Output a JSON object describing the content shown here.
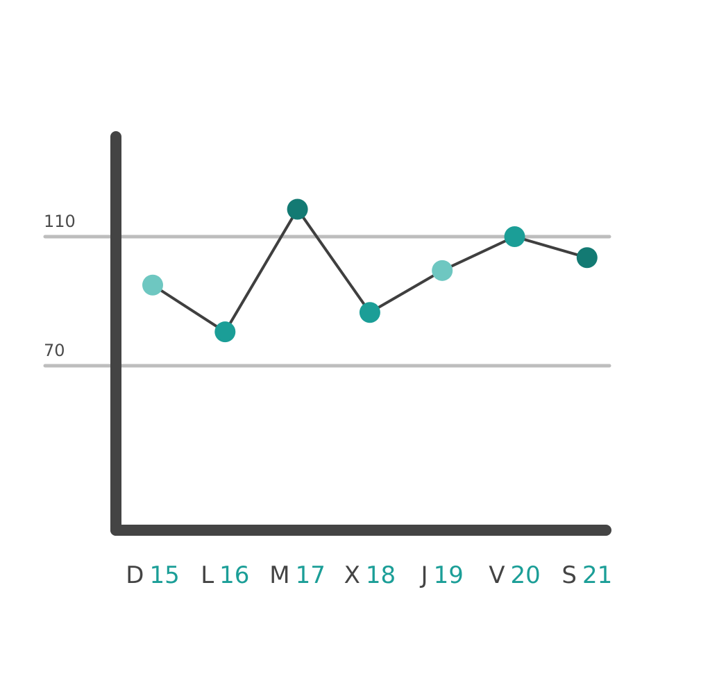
{
  "colors": {
    "axis": "#444444",
    "grid": "#bdbdbd",
    "line": "#3f3f3f",
    "day_number": "#1b9e97",
    "point_light": "#6ec7c1",
    "point_mid": "#1b9e97",
    "point_dark": "#137a73"
  },
  "chart_data": {
    "type": "line",
    "title": "",
    "xlabel": "",
    "ylabel": "",
    "ylim": [
      0,
      155
    ],
    "yticks": [
      70,
      110
    ],
    "grid": true,
    "categories": [
      {
        "letter": "D",
        "number": "15"
      },
      {
        "letter": "L",
        "number": "16"
      },
      {
        "letter": "M",
        "number": "17"
      },
      {
        "letter": "X",
        "number": "18"
      },
      {
        "letter": "J",
        "number": "19"
      },
      {
        "letter": "V",
        "number": "20"
      },
      {
        "letter": "S",
        "number": "21"
      }
    ],
    "values": [
      95,
      80.5,
      118.5,
      86.5,
      99.5,
      110,
      103.5
    ],
    "point_shades": [
      "light",
      "mid",
      "dark",
      "mid",
      "light",
      "mid",
      "dark"
    ]
  }
}
